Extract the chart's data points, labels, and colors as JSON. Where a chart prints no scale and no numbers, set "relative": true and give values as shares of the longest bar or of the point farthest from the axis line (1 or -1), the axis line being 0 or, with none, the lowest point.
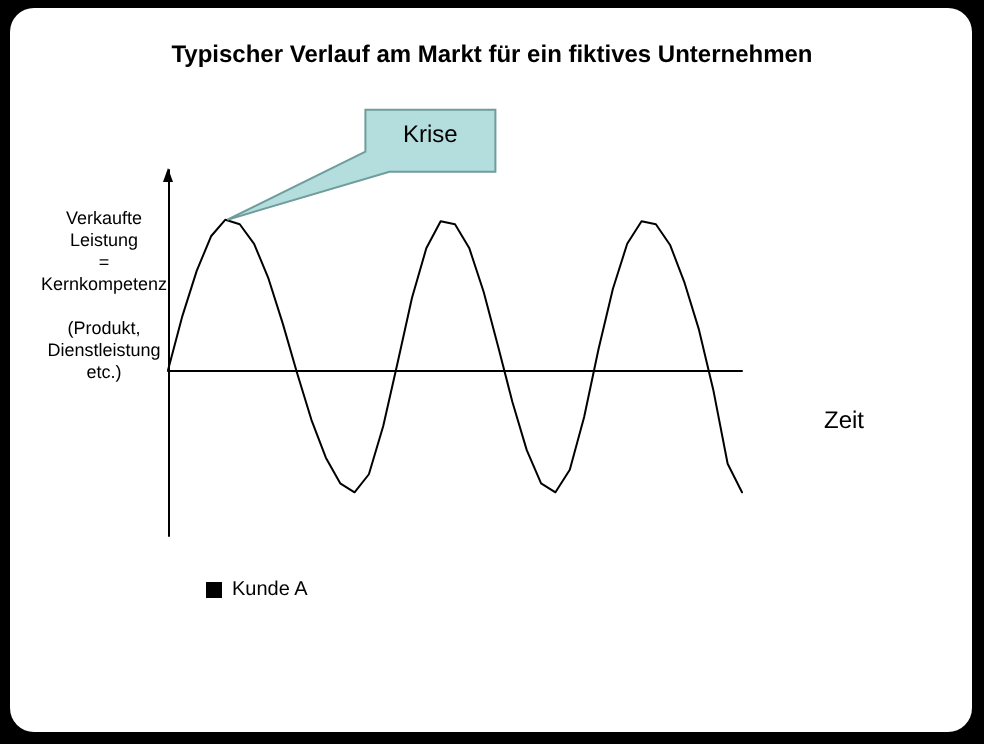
{
  "chart_data": {
    "type": "line",
    "title": "Typischer Verlauf am Markt für ein fiktives Unternehmen",
    "xlabel": "Zeit",
    "ylabel": "Verkaufte\nLeistung\n=\nKernkompetenz\n\n(Produkt,\nDienstleistung\netc.)",
    "annotations": [
      "Krise"
    ],
    "relative": true,
    "grid": false,
    "legend": "bottom left",
    "marker": "none",
    "line_style": "solid",
    "categories": [
      null,
      null,
      null,
      null,
      null,
      null,
      null,
      null,
      null,
      null,
      null,
      null,
      null,
      null,
      null,
      null,
      null,
      null,
      null,
      null,
      null,
      null,
      null,
      null,
      null,
      null,
      null,
      null,
      null,
      null,
      null,
      null,
      null,
      null,
      null,
      null,
      null,
      null,
      null,
      null,
      null
    ],
    "series": [
      {
        "name": "Kunde A",
        "color": "#000000",
        "values": [
          0,
          0.36,
          0.66,
          0.89,
          1,
          0.97,
          0.84,
          0.61,
          0.31,
          -0.02,
          -0.33,
          -0.58,
          -0.75,
          -0.81,
          -0.69,
          -0.37,
          0.05,
          0.48,
          0.81,
          0.99,
          0.97,
          0.81,
          0.52,
          0.16,
          -0.21,
          -0.53,
          -0.75,
          -0.81,
          -0.66,
          -0.31,
          0.14,
          0.54,
          0.84,
          0.99,
          0.97,
          0.83,
          0.58,
          0.27,
          -0.13,
          -0.62,
          -0.81
        ]
      }
    ]
  }
}
